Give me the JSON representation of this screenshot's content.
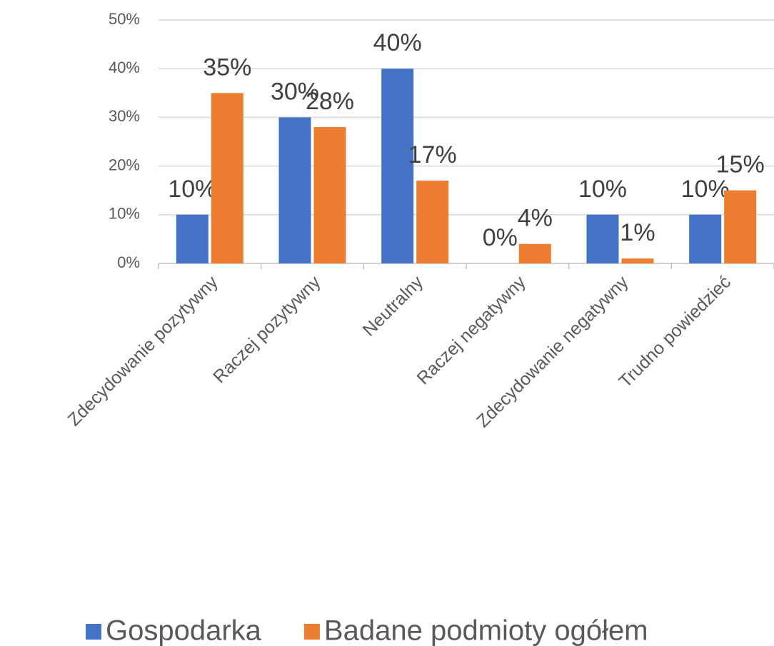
{
  "chart_data": {
    "type": "bar",
    "categories": [
      "Zdecydowanie pozytywny",
      "Raczej pozytywny",
      "Neutralny",
      "Raczej negatywny",
      "Zdecydowanie negatywny",
      "Trudno powiedzieć"
    ],
    "series": [
      {
        "name": "Gospodarka",
        "color": "#4472c4",
        "values": [
          10,
          30,
          40,
          0,
          10,
          10
        ],
        "value_labels": [
          "10%",
          "30%",
          "40%",
          "0%",
          "10%",
          "10%"
        ]
      },
      {
        "name": "Badane podmioty ogółem",
        "color": "#ed7d31",
        "values": [
          35,
          28,
          17,
          4,
          1,
          15
        ],
        "value_labels": [
          "35%",
          "28%",
          "17%",
          "4%",
          "1%",
          "15%"
        ]
      }
    ],
    "ylim": [
      0,
      50
    ],
    "yticks": [
      {
        "value": 0,
        "label": "0%"
      },
      {
        "value": 10,
        "label": "10%"
      },
      {
        "value": 20,
        "label": "20%"
      },
      {
        "value": 30,
        "label": "30%"
      },
      {
        "value": 40,
        "label": "40%"
      },
      {
        "value": 50,
        "label": "50%"
      }
    ],
    "grid": true,
    "legend": "bottom"
  }
}
